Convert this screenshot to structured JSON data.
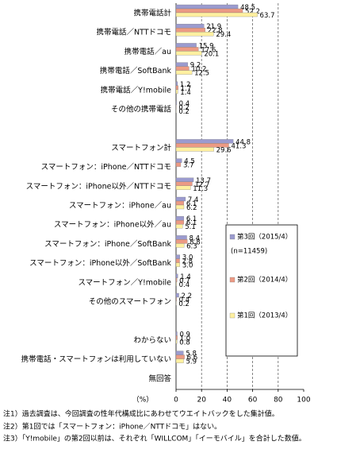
{
  "chart_data": {
    "type": "barh",
    "categories": [
      "携帯電話計",
      "携帯電話／NTTドコモ",
      "携帯電話／au",
      "携帯電話／SoftBank",
      "携帯電話／Y!mobile",
      "その他の携帯電話",
      null,
      "スマートフォン計",
      "スマートフォン：iPhone／NTTドコモ",
      "スマートフォン：iPhone以外／NTTドコモ",
      "スマートフォン：iPhone／au",
      "スマートフォン：iPhone以外／au",
      "スマートフォン：iPhone／SoftBank",
      "スマートフォン：iPhone以外／SoftBank",
      "スマートフォン／Y!mobile",
      "その他のスマートフォン",
      null,
      "わからない",
      "携帯電話・スマートフォンは利用していない",
      "無回答"
    ],
    "series": [
      {
        "name": "第3回（2015/4）",
        "color": "#9b9bcf",
        "values": [
          48.5,
          21.9,
          15.9,
          9.2,
          1.2,
          0.4,
          null,
          44.8,
          4.5,
          13.7,
          7.4,
          6.1,
          8.4,
          3.0,
          1.4,
          2.2,
          null,
          0.9,
          5.8,
          null
        ],
        "value_labels": [
          "48.5",
          "21.9",
          "15.9",
          "9.2",
          "1.2",
          "0.4",
          null,
          "44.8",
          "4.5",
          "13.7",
          "7.4",
          "6.1",
          "8.4",
          "3.0",
          "1.4",
          "2.2",
          null,
          "0.9",
          "5.8",
          null
        ]
      },
      {
        "name": "第2回（2014/4）",
        "color": "#ec9a84",
        "values": [
          52.2,
          22.8,
          17.6,
          10.2,
          1.7,
          0.2,
          null,
          41.3,
          3.7,
          12.7,
          6.1,
          6.1,
          8.8,
          2.8,
          0.7,
          0.4,
          null,
          1.0,
          6.6,
          null
        ],
        "value_labels": [
          "52.2",
          "22.8",
          "17.6",
          "10.2",
          "1.7",
          "0.2",
          null,
          "41.3",
          "3.7",
          "12.7",
          "6.1",
          "6.1",
          "8.8",
          "2.8",
          "0.7",
          "0.4",
          null,
          "1.0",
          "6.6",
          null
        ]
      },
      {
        "name": "第1回（2013/4）",
        "color": "#fff0a0",
        "values": [
          63.7,
          29.4,
          20.1,
          12.5,
          1.4,
          0.2,
          null,
          29.6,
          null,
          11.3,
          6.2,
          5.1,
          6.3,
          3.0,
          0.4,
          0.2,
          null,
          0.8,
          5.9,
          null
        ],
        "value_labels": [
          "63.7",
          "29.4",
          "20.1",
          "12.5",
          "1.4",
          "0.2",
          null,
          "29.6",
          null,
          "11.3",
          "6.2",
          "5.1",
          "6.3",
          "3.0",
          "0.4",
          "0.2",
          null,
          "0.8",
          "5.9",
          null
        ]
      }
    ],
    "legend_note": "(n=11459)",
    "xlabel": "（%）",
    "xlim": [
      0,
      100
    ],
    "xticks": [
      0,
      20,
      40,
      60,
      80,
      100
    ],
    "grid": true
  },
  "notes": [
    "注1）過去調査は、今回調査の性年代構成比にあわせてウエイトバックをした集計値。",
    "注2）第1回では「スマートフォン：iPhone／NTTドコモ」はない。",
    "注3）「Y!mobile」の第2回以前は、それぞれ「WILLCOM」「イーモバイル」を合計した数値。"
  ]
}
